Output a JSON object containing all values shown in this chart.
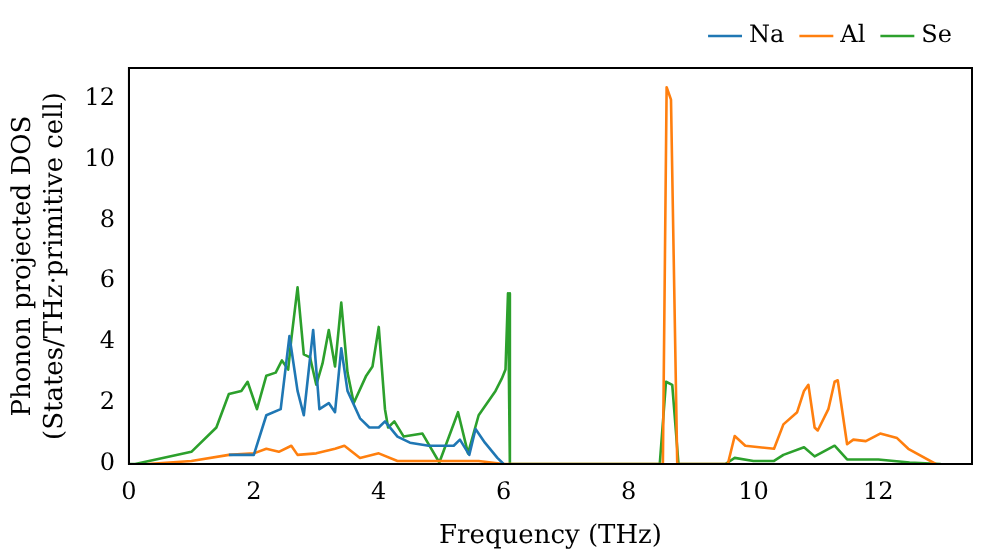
{
  "chart_data": {
    "type": "line",
    "xlabel": "Frequency (THz)",
    "ylabel": "Phonon projected DOS\n(States/THz·primitive cell)",
    "xlim": [
      0,
      13.5
    ],
    "ylim": [
      0,
      13
    ],
    "xticks": [
      0,
      2,
      4,
      6,
      8,
      10,
      12
    ],
    "yticks": [
      0,
      2,
      4,
      6,
      8,
      10,
      12
    ],
    "grid": false,
    "legend": "top right",
    "marker": "none",
    "line_style": "solid",
    "series": [
      {
        "name": "Na",
        "color": "#1f77b4",
        "x": [
          1.6,
          2.0,
          2.2,
          2.43,
          2.57,
          2.7,
          2.8,
          2.95,
          3.05,
          3.2,
          3.3,
          3.4,
          3.5,
          3.7,
          3.85,
          4.0,
          4.1,
          4.3,
          4.5,
          4.8,
          5.2,
          5.3,
          5.45,
          5.55,
          5.7,
          5.9,
          6.0
        ],
        "values": [
          0.3,
          0.3,
          1.6,
          1.8,
          4.2,
          2.4,
          1.6,
          4.4,
          1.8,
          2.0,
          1.7,
          3.8,
          2.4,
          1.5,
          1.2,
          1.2,
          1.4,
          0.9,
          0.7,
          0.6,
          0.6,
          0.8,
          0.3,
          1.15,
          0.7,
          0.2,
          0
        ]
      },
      {
        "name": "Al",
        "color": "#ff7f0e",
        "x": [
          0.3,
          1.0,
          1.6,
          2.0,
          2.2,
          2.4,
          2.6,
          2.7,
          3.0,
          3.3,
          3.45,
          3.7,
          4.0,
          4.3,
          5.6,
          6.0,
          8.5,
          8.55,
          8.61,
          8.68,
          8.78,
          9.59,
          9.7,
          9.87,
          10.33,
          10.48,
          10.7,
          10.81,
          10.88,
          10.98,
          11.03,
          11.2,
          11.3,
          11.35,
          11.5,
          11.6,
          11.8,
          12.03,
          12.3,
          12.48,
          12.92
        ],
        "values": [
          0,
          0.1,
          0.3,
          0.35,
          0.5,
          0.4,
          0.6,
          0.3,
          0.35,
          0.5,
          0.6,
          0.2,
          0.35,
          0.1,
          0.1,
          0,
          0,
          0,
          12.37,
          11.96,
          0,
          0,
          0.92,
          0.6,
          0.5,
          1.3,
          1.7,
          2.4,
          2.6,
          1.2,
          1.1,
          1.8,
          2.7,
          2.75,
          0.65,
          0.8,
          0.75,
          1.0,
          0.85,
          0.5,
          0
        ]
      },
      {
        "name": "Se",
        "color": "#2ca02c",
        "x": [
          0,
          0.1,
          1.0,
          1.4,
          1.6,
          1.8,
          1.9,
          2.05,
          2.2,
          2.35,
          2.45,
          2.55,
          2.6,
          2.7,
          2.8,
          2.9,
          3.0,
          3.1,
          3.2,
          3.3,
          3.4,
          3.5,
          3.6,
          3.8,
          3.9,
          4.0,
          4.1,
          4.15,
          4.25,
          4.4,
          4.7,
          4.97,
          5.27,
          5.43,
          5.6,
          5.87,
          5.97,
          6.03,
          6.07,
          6.1,
          8.5,
          8.6,
          8.7,
          8.8,
          9.55,
          9.7,
          10.0,
          10.33,
          10.48,
          10.81,
          10.98,
          11.3,
          11.5,
          12.0,
          12.5,
          13.0
        ],
        "values": [
          0,
          0,
          0.4,
          1.2,
          2.3,
          2.4,
          2.7,
          1.8,
          2.9,
          3.0,
          3.4,
          3.1,
          4.1,
          5.8,
          3.6,
          3.5,
          2.6,
          3.3,
          4.4,
          3.2,
          5.3,
          3.0,
          2.0,
          2.9,
          3.2,
          4.5,
          1.8,
          1.2,
          1.4,
          0.9,
          1.0,
          0.05,
          1.7,
          0.35,
          1.6,
          2.4,
          2.8,
          3.1,
          5.6,
          0,
          0,
          2.7,
          2.6,
          0,
          0,
          0.2,
          0.1,
          0.1,
          0.3,
          0.55,
          0.25,
          0.6,
          0.15,
          0.15,
          0.05,
          0
        ]
      }
    ]
  }
}
